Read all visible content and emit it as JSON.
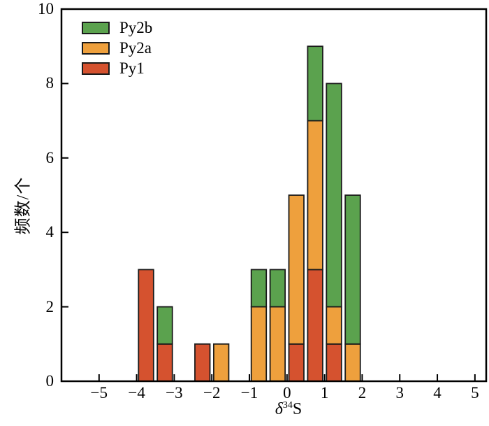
{
  "chart_data": {
    "type": "bar",
    "stacked": true,
    "histogram": true,
    "xlabel": {
      "delta": "δ",
      "sup": "34",
      "base": "S"
    },
    "ylabel": "频数/个",
    "xlim": [
      -6,
      5.3
    ],
    "ylim": [
      0,
      10
    ],
    "grid": false,
    "legend_position": "top-left",
    "edge_color": "#1a1a1a",
    "xticks": [
      -5,
      -4,
      -3,
      -2,
      -1,
      0,
      1,
      2,
      3,
      4,
      5
    ],
    "xtick_labels": [
      "−5",
      "−4",
      "−3",
      "−2",
      "−1",
      "0",
      "1",
      "2",
      "3",
      "4",
      "5"
    ],
    "yticks": [
      0,
      2,
      4,
      6,
      8,
      10
    ],
    "ytick_labels": [
      "0",
      "2",
      "4",
      "6",
      "8",
      "10"
    ],
    "bin_width": 0.5,
    "bar_rwidth": 0.8,
    "bins": [
      {
        "x0": -4.0,
        "x1": -3.5
      },
      {
        "x0": -3.5,
        "x1": -3.0
      },
      {
        "x0": -2.5,
        "x1": -2.0
      },
      {
        "x0": -2.0,
        "x1": -1.5
      },
      {
        "x0": -1.0,
        "x1": -0.5
      },
      {
        "x0": -0.5,
        "x1": 0.0
      },
      {
        "x0": 0.0,
        "x1": 0.5
      },
      {
        "x0": 0.5,
        "x1": 1.0
      },
      {
        "x0": 1.0,
        "x1": 1.5
      },
      {
        "x0": 1.5,
        "x1": 2.0
      }
    ],
    "series": [
      {
        "name": "Py1",
        "color": "#d5522f",
        "values": [
          3,
          1,
          1,
          0,
          0,
          0,
          1,
          3,
          1,
          0
        ]
      },
      {
        "name": "Py2a",
        "color": "#eea03d",
        "values": [
          0,
          0,
          0,
          1,
          2,
          2,
          4,
          4,
          1,
          1
        ]
      },
      {
        "name": "Py2b",
        "color": "#5ba24e",
        "values": [
          0,
          1,
          0,
          0,
          1,
          1,
          0,
          2,
          6,
          4
        ]
      }
    ],
    "legend": [
      {
        "label": "Py2b",
        "color": "#5ba24e"
      },
      {
        "label": "Py2a",
        "color": "#eea03d"
      },
      {
        "label": "Py1",
        "color": "#d5522f"
      }
    ]
  }
}
